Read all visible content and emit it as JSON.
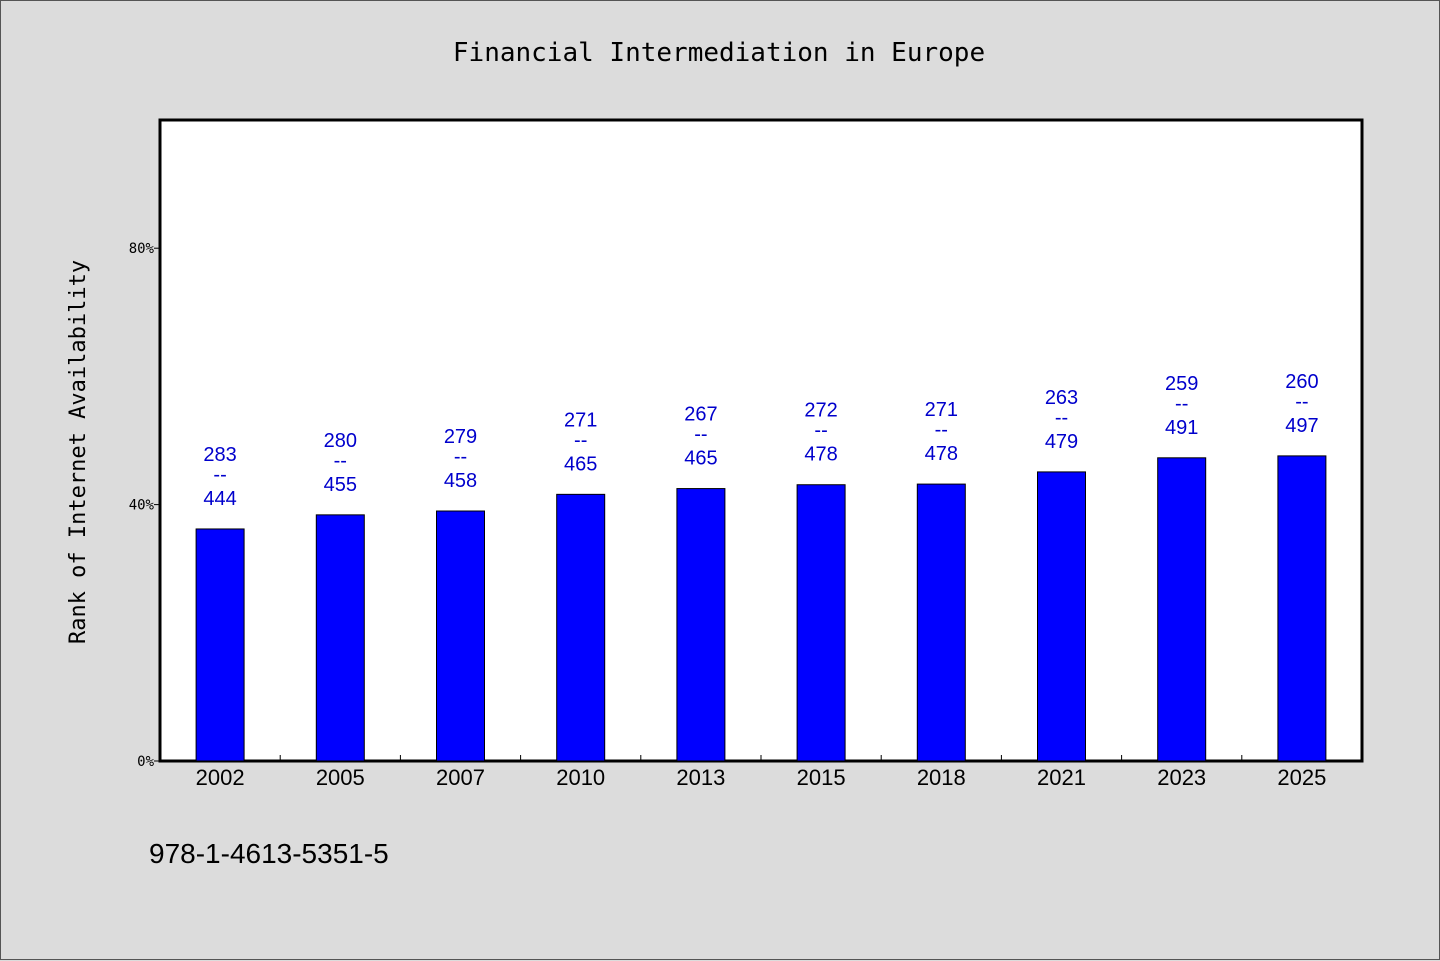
{
  "chart_data": {
    "type": "bar",
    "title": "Financial Intermediation in Europe",
    "xlabel": "",
    "ylabel": "Rank of Internet Availability",
    "ylim": [
      0,
      100
    ],
    "yticks": [
      0,
      40,
      80
    ],
    "ytick_labels": [
      "0%",
      "40%",
      "80%"
    ],
    "categories": [
      "2002",
      "2005",
      "2007",
      "2010",
      "2013",
      "2015",
      "2018",
      "2021",
      "2023",
      "2025"
    ],
    "series": [
      {
        "values": [
          36.2,
          38.4,
          39.0,
          41.6,
          42.5,
          43.1,
          43.2,
          45.1,
          47.3,
          47.6
        ],
        "color": "#0000ff"
      }
    ],
    "data_labels": [
      {
        "top": "283",
        "sep": "--",
        "bottom": "444"
      },
      {
        "top": "280",
        "sep": "--",
        "bottom": "455"
      },
      {
        "top": "279",
        "sep": "--",
        "bottom": "458"
      },
      {
        "top": "271",
        "sep": "--",
        "bottom": "465"
      },
      {
        "top": "267",
        "sep": "--",
        "bottom": "465"
      },
      {
        "top": "272",
        "sep": "--",
        "bottom": "478"
      },
      {
        "top": "271",
        "sep": "--",
        "bottom": "478"
      },
      {
        "top": "263",
        "sep": "--",
        "bottom": "479"
      },
      {
        "top": "259",
        "sep": "--",
        "bottom": "491"
      },
      {
        "top": "260",
        "sep": "--",
        "bottom": "497"
      }
    ],
    "grid": false,
    "data_label_color": "#0000cc"
  },
  "footer": {
    "isbn": "978-1-4613-5351-5"
  }
}
